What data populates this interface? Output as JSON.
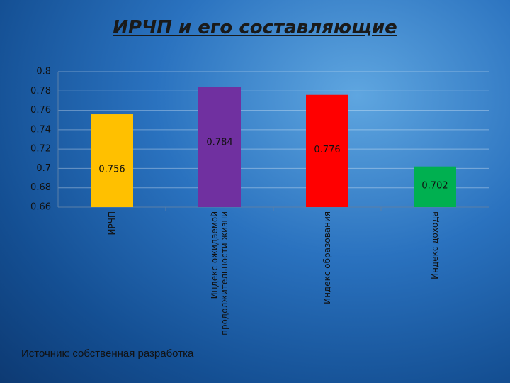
{
  "chart_data": {
    "type": "bar",
    "title": "ИРЧП и его составляющие",
    "categories": [
      "ИРЧП",
      "Индекс ожидаемой продолжительности жизни",
      "Индекс образования",
      "Индекс дохода"
    ],
    "values": [
      0.756,
      0.784,
      0.776,
      0.702
    ],
    "colors": [
      "#ffc000",
      "#7030a0",
      "#ff0000",
      "#00b050"
    ],
    "ylim": [
      0.66,
      0.8
    ],
    "yticks": [
      0.66,
      0.68,
      0.7,
      0.72,
      0.74,
      0.76,
      0.78,
      0.8
    ],
    "grid": true,
    "source": "Источник: собственная разработка"
  }
}
